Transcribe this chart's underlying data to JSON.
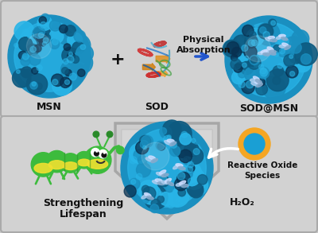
{
  "fig_width": 4.0,
  "fig_height": 2.93,
  "dpi": 100,
  "bg_color": "#c8c8c8",
  "panel_bg": "#d2d2d2",
  "msn_color_light": "#29b5e8",
  "msn_color_mid": "#1a8fc0",
  "msn_color_dark": "#0d5a80",
  "msn_color_deep": "#083050",
  "arrow_color": "#2255cc",
  "shield_color": "#c8c8c8",
  "shield_edge": "#999999",
  "ros_outer": "#f5a623",
  "ros_inner": "#1a9fd4",
  "caterpillar_body": "#3dbb3d",
  "caterpillar_dark": "#2a8a2a",
  "caterpillar_belly": "#f0e030",
  "text_color": "#111111",
  "top_panel": {
    "msn_label": "MSN",
    "sod_label": "SOD",
    "product_label": "SOD@MSN",
    "arrow_label_line1": "Physical",
    "arrow_label_line2": "Absorption",
    "plus_sign": "+"
  },
  "bottom_panel": {
    "label1_line1": "Strengthening",
    "label1_line2": "Lifespan",
    "label2_line1": "Reactive Oxide",
    "label2_line2": "Species",
    "h2o2_label": "H₂O₂"
  },
  "label_fontsize": 9,
  "small_fontsize": 8
}
